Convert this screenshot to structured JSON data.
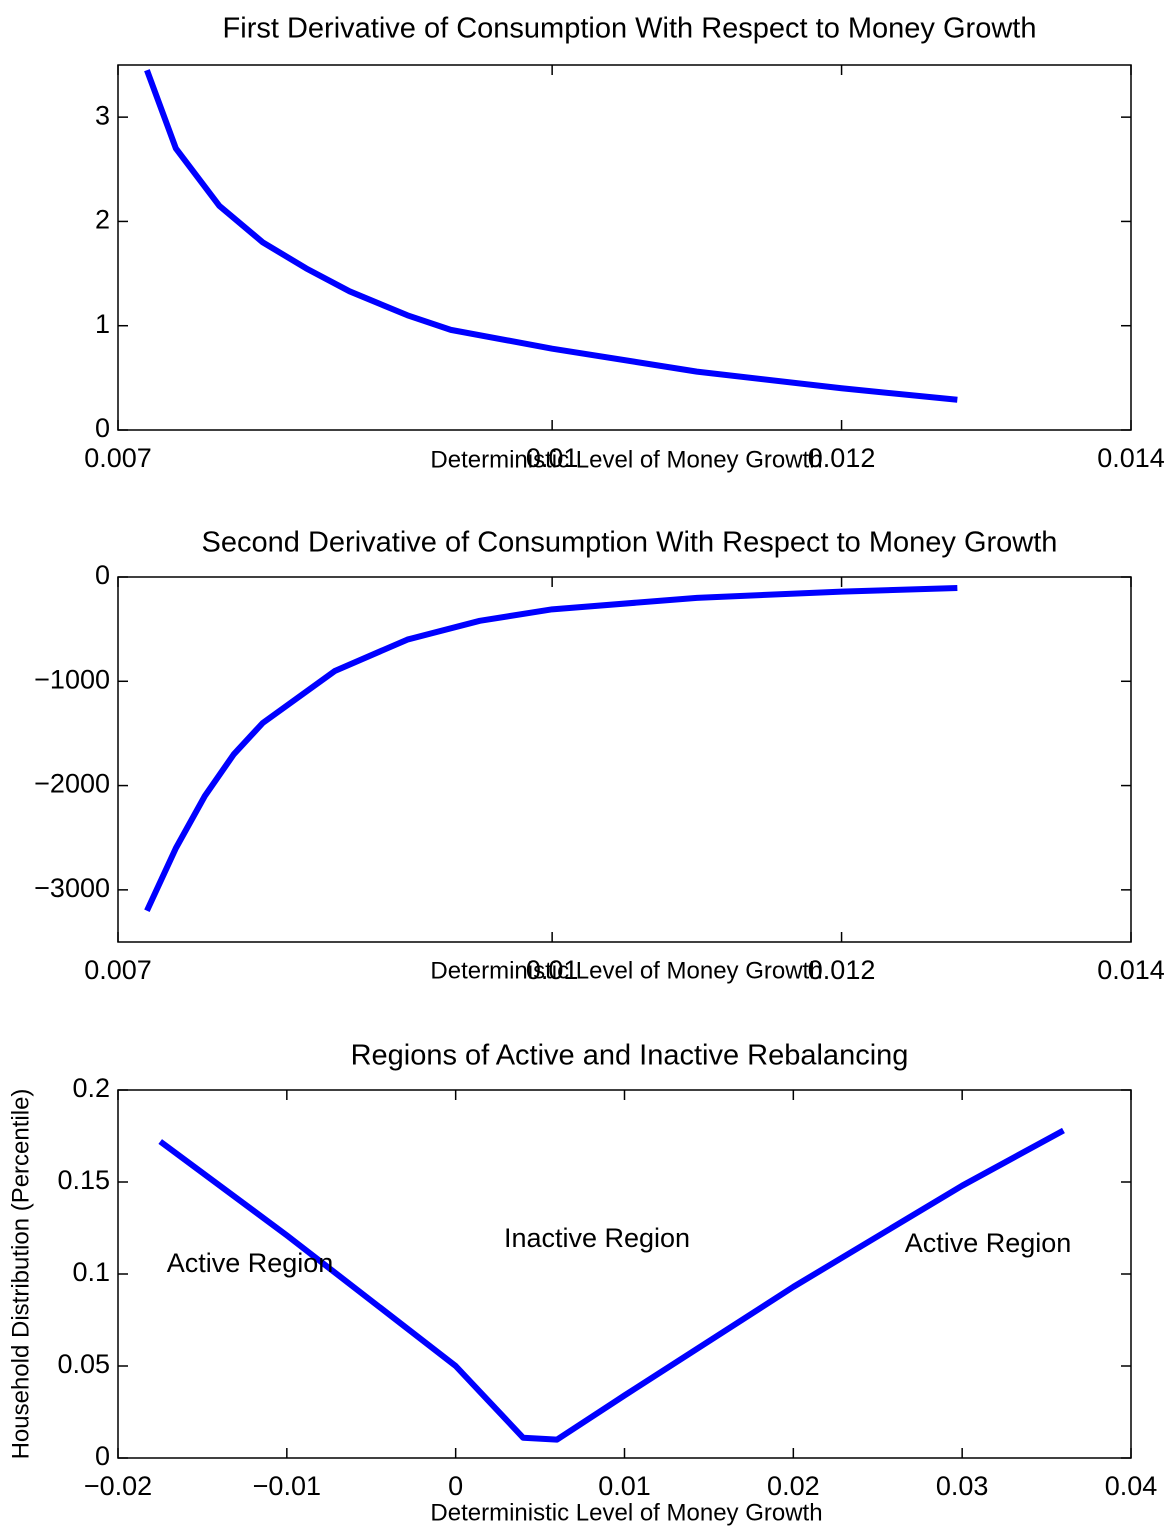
{
  "chart_data": [
    {
      "type": "line",
      "title": "First Derivative of Consumption With Respect to Money Growth",
      "xlabel": "Deterministic Level of Money Growth",
      "x": [
        0.0072,
        0.0074,
        0.0077,
        0.008,
        0.0083,
        0.0086,
        0.009,
        0.0093,
        0.01,
        0.011,
        0.012,
        0.0128
      ],
      "values": [
        3.45,
        2.7,
        2.15,
        1.8,
        1.55,
        1.33,
        1.1,
        0.96,
        0.78,
        0.56,
        0.4,
        0.29
      ],
      "color": "#0000ff",
      "xlim": [
        0.007,
        0.014
      ],
      "xticks": [
        0.007,
        0.01,
        0.012,
        0.014
      ],
      "ylim": [
        0,
        3.5
      ],
      "yticks": [
        0,
        1,
        2,
        3
      ],
      "grid": false
    },
    {
      "type": "line",
      "title": "Second Derivative of Consumption With Respect to Money Growth",
      "xlabel": "Deterministic Level of Money Growth",
      "x": [
        0.0072,
        0.0074,
        0.0076,
        0.0078,
        0.008,
        0.0085,
        0.009,
        0.0095,
        0.01,
        0.011,
        0.012,
        0.0128
      ],
      "values": [
        -3200,
        -2600,
        -2100,
        -1700,
        -1400,
        -900,
        -600,
        -420,
        -310,
        -200,
        -140,
        -105
      ],
      "color": "#0000ff",
      "xlim": [
        0.007,
        0.014
      ],
      "xticks": [
        0.007,
        0.01,
        0.012,
        0.014
      ],
      "ylim": [
        -3500,
        0
      ],
      "yticks": [
        {
          "value": -3000,
          "label": "−3000"
        },
        {
          "value": -2000,
          "label": "−2000"
        },
        {
          "value": -1000,
          "label": "−1000"
        },
        0
      ],
      "grid": false
    },
    {
      "type": "line",
      "title": "Regions of Active and Inactive Rebalancing",
      "xlabel": "Deterministic Level of Money Growth",
      "ylabel": "Household Distribution (Percentile)",
      "x": [
        -0.0175,
        -0.01,
        0,
        0.004,
        0.006,
        0.01,
        0.02,
        0.03,
        0.036
      ],
      "values": [
        0.172,
        0.121,
        0.05,
        0.011,
        0.01,
        0.034,
        0.093,
        0.148,
        0.178
      ],
      "color": "#0000ff",
      "xlim": [
        -0.02,
        0.04
      ],
      "xticks": [
        {
          "value": -0.02,
          "label": "−0.02"
        },
        {
          "value": -0.01,
          "label": "−0.01"
        },
        0,
        0.01,
        0.02,
        0.03,
        0.04
      ],
      "ylim": [
        0,
        0.2
      ],
      "yticks": [
        0,
        0.05,
        0.1,
        0.15,
        0.2
      ],
      "annotations": [
        "Active Region",
        "Inactive Region",
        "Active Region"
      ],
      "grid": false
    }
  ]
}
